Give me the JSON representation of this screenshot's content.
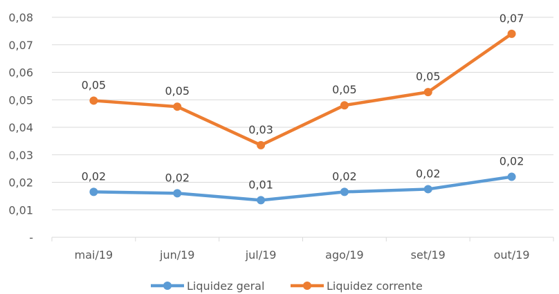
{
  "chart_data": {
    "type": "line",
    "categories": [
      "mai/19",
      "jun/19",
      "jul/19",
      "ago/19",
      "set/19",
      "out/19"
    ],
    "series": [
      {
        "name": "Liquidez geral",
        "color": "#5B9BD5",
        "values": [
          0.0165,
          0.016,
          0.0135,
          0.0165,
          0.0175,
          0.022
        ],
        "labels": [
          "0,02",
          "0,02",
          "0,01",
          "0,02",
          "0,02",
          "0,02"
        ]
      },
      {
        "name": "Liquidez corrente",
        "color": "#ED7D31",
        "values": [
          0.0497,
          0.0475,
          0.0335,
          0.048,
          0.0528,
          0.074
        ],
        "labels": [
          "0,05",
          "0,05",
          "0,03",
          "0,05",
          "0,05",
          "0,07"
        ]
      }
    ],
    "y_ticks": [
      {
        "value": 0,
        "label": "-"
      },
      {
        "value": 0.01,
        "label": "0,01"
      },
      {
        "value": 0.02,
        "label": "0,02"
      },
      {
        "value": 0.03,
        "label": "0,03"
      },
      {
        "value": 0.04,
        "label": "0,04"
      },
      {
        "value": 0.05,
        "label": "0,05"
      },
      {
        "value": 0.06,
        "label": "0,06"
      },
      {
        "value": 0.07,
        "label": "0,07"
      },
      {
        "value": 0.08,
        "label": "0,08"
      }
    ],
    "ylim": [
      0,
      0.08
    ],
    "grid": true,
    "gridline_color": "#D9D9D9",
    "legend_position": "bottom",
    "title": "",
    "xlabel": "",
    "ylabel": ""
  }
}
